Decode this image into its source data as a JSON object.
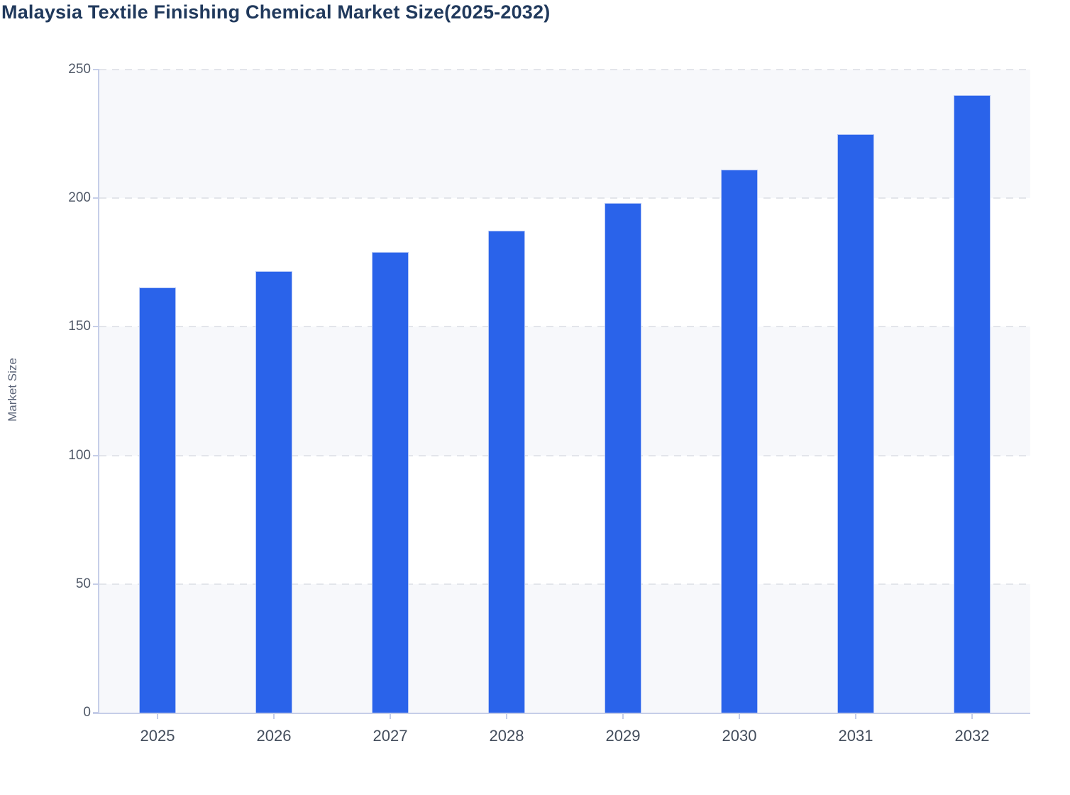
{
  "chart_data": {
    "type": "bar",
    "title": "Malaysia Textile Finishing Chemical Market Size(2025-2032)",
    "series_name": "Market Size",
    "categories": [
      "2025",
      "2026",
      "2027",
      "2028",
      "2029",
      "2030",
      "2031",
      "2032"
    ],
    "values": [
      165.2,
      171.5,
      179.0,
      187.5,
      198.0,
      211.0,
      225.0,
      240.2
    ],
    "xlabel": "",
    "ylabel": "Market Size",
    "ylim": [
      0,
      250
    ],
    "yticks": [
      0,
      50,
      100,
      150,
      200,
      250
    ],
    "grid": "horizontal-dashed",
    "plot_background": "alternating-horizontal-bands",
    "legend": "none",
    "colors": {
      "bar": "#2a63ea",
      "bar_stroke": "#b6c8f6",
      "band": "#f7f8fb",
      "grid": "#e3e5ea",
      "axis": "#c6cee8",
      "title_text": "#20395c",
      "y_tick_text": "#4e5766",
      "x_tick_text": "#434d5c",
      "y_axis_title_text": "#5b6478"
    }
  }
}
